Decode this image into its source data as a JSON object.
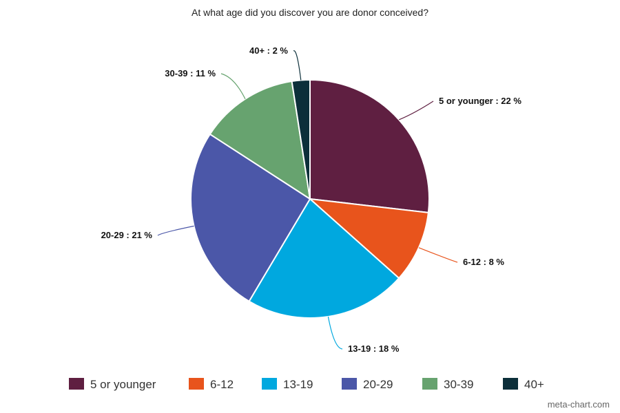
{
  "chart_data": {
    "type": "pie",
    "title": "At what age did you discover you are donor conceived?",
    "slices": [
      {
        "name": "5 or younger",
        "value": 22,
        "color": "#5f1f41",
        "label": "5 or younger : 22 %"
      },
      {
        "name": "6-12",
        "value": 8,
        "color": "#e8541c",
        "label": "6-12 : 8 %"
      },
      {
        "name": "13-19",
        "value": 18,
        "color": "#00a8df",
        "label": "13-19 : 18 %"
      },
      {
        "name": "20-29",
        "value": 21,
        "color": "#4b57a8",
        "label": "20-29 : 21 %"
      },
      {
        "name": "30-39",
        "value": 11,
        "color": "#67a36f",
        "label": "30-39 : 11 %"
      },
      {
        "name": "40+",
        "value": 2,
        "color": "#0c2f3a",
        "label": "40+ : 2 %"
      }
    ],
    "legend_position": "bottom"
  },
  "watermark": "meta-chart.com"
}
